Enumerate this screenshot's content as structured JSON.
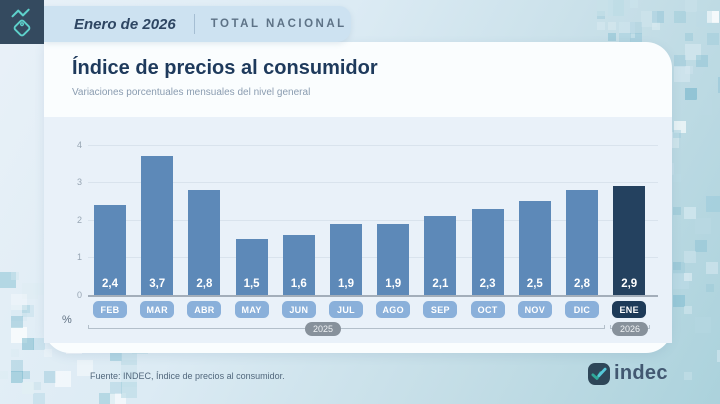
{
  "header": {
    "period": "Enero de 2026",
    "scope": "TOTAL NACIONAL"
  },
  "main": {
    "title": "Índice de precios al consumidor",
    "subtitle": "Variaciones porcentuales mensuales del nivel general"
  },
  "chart_data": {
    "type": "bar",
    "title": "Índice de precios al consumidor",
    "subtitle": "Variaciones porcentuales mensuales del nivel general",
    "unit_label": "%",
    "categories": [
      "FEB",
      "MAR",
      "ABR",
      "MAY",
      "JUN",
      "JUL",
      "AGO",
      "SEP",
      "OCT",
      "NOV",
      "DIC",
      "ENE"
    ],
    "values": [
      2.4,
      3.7,
      2.8,
      1.5,
      1.6,
      1.9,
      1.9,
      2.1,
      2.3,
      2.5,
      2.8,
      2.9
    ],
    "value_labels": [
      "2,4",
      "3,7",
      "2,8",
      "1,5",
      "1,6",
      "1,9",
      "1,9",
      "2,1",
      "2,3",
      "2,5",
      "2,8",
      "2,9"
    ],
    "highlight_index": 11,
    "y_ticks": [
      4,
      3,
      2,
      1,
      0
    ],
    "ylim": [
      0,
      4
    ],
    "grid": true,
    "legend": "none",
    "year_groups": [
      {
        "label": "2025",
        "start": "FEB",
        "end": "DIC"
      },
      {
        "label": "2026",
        "start": "ENE",
        "end": "ENE"
      }
    ],
    "colors": {
      "bar": "#5d89b8",
      "bar_highlight": "#24415f",
      "month_pill": "#8ab0da",
      "month_pill_highlight": "#1d3a58",
      "year_pill": "#87919b"
    }
  },
  "footer": {
    "source": "Fuente: INDEC, Índice de precios al consumidor.",
    "logo_text": "indec"
  }
}
